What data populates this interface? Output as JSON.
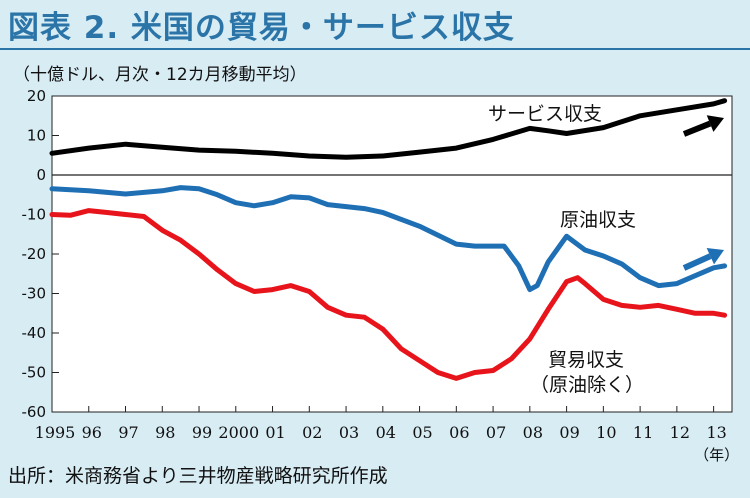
{
  "title": "図表 2. 米国の貿易・サービス収支",
  "unit_note": "（十億ドル、月次・12カ月移動平均）",
  "source": "出所：米商務省より三井物産戦略研究所作成",
  "chart_data": {
    "type": "line",
    "ylim": [
      -60,
      20
    ],
    "yticks": [
      20,
      10,
      0,
      -10,
      -20,
      -30,
      -40,
      -50,
      -60
    ],
    "xlim": [
      1995.0,
      2013.5
    ],
    "xticks": [
      {
        "x": 1995,
        "label": "1995"
      },
      {
        "x": 1996,
        "label": "96"
      },
      {
        "x": 1997,
        "label": "97"
      },
      {
        "x": 1998,
        "label": "98"
      },
      {
        "x": 1999,
        "label": "99"
      },
      {
        "x": 2000,
        "label": "2000"
      },
      {
        "x": 2001,
        "label": "01"
      },
      {
        "x": 2002,
        "label": "02"
      },
      {
        "x": 2003,
        "label": "03"
      },
      {
        "x": 2004,
        "label": "04"
      },
      {
        "x": 2005,
        "label": "05"
      },
      {
        "x": 2006,
        "label": "06"
      },
      {
        "x": 2007,
        "label": "07"
      },
      {
        "x": 2008,
        "label": "08"
      },
      {
        "x": 2009,
        "label": "09"
      },
      {
        "x": 2010,
        "label": "10"
      },
      {
        "x": 2011,
        "label": "11"
      },
      {
        "x": 2012,
        "label": "12"
      },
      {
        "x": 2013,
        "label": "13"
      }
    ],
    "x_unit": "（年）",
    "grid": false,
    "series": [
      {
        "name": "サービス収支",
        "color": "#000000",
        "arrow": true,
        "points": [
          [
            1995.0,
            5.5
          ],
          [
            1996.0,
            6.8
          ],
          [
            1997.0,
            7.8
          ],
          [
            1998.0,
            7.0
          ],
          [
            1999.0,
            6.3
          ],
          [
            2000.0,
            6.0
          ],
          [
            2001.0,
            5.5
          ],
          [
            2002.0,
            4.8
          ],
          [
            2003.0,
            4.5
          ],
          [
            2004.0,
            4.8
          ],
          [
            2005.0,
            5.8
          ],
          [
            2006.0,
            6.8
          ],
          [
            2007.0,
            9.0
          ],
          [
            2008.0,
            11.8
          ],
          [
            2008.5,
            11.2
          ],
          [
            2009.0,
            10.5
          ],
          [
            2010.0,
            12.0
          ],
          [
            2011.0,
            15.0
          ],
          [
            2012.0,
            16.5
          ],
          [
            2013.0,
            18.0
          ],
          [
            2013.3,
            18.8
          ]
        ]
      },
      {
        "name": "原油収支",
        "color": "#1f6fb5",
        "arrow": true,
        "points": [
          [
            1995.0,
            -3.5
          ],
          [
            1996.0,
            -4.0
          ],
          [
            1997.0,
            -4.8
          ],
          [
            1998.0,
            -4.0
          ],
          [
            1998.5,
            -3.2
          ],
          [
            1999.0,
            -3.5
          ],
          [
            1999.5,
            -5.0
          ],
          [
            2000.0,
            -7.0
          ],
          [
            2000.5,
            -7.8
          ],
          [
            2001.0,
            -7.0
          ],
          [
            2001.5,
            -5.5
          ],
          [
            2002.0,
            -5.8
          ],
          [
            2002.5,
            -7.5
          ],
          [
            2003.0,
            -8.0
          ],
          [
            2003.5,
            -8.5
          ],
          [
            2004.0,
            -9.5
          ],
          [
            2005.0,
            -13.0
          ],
          [
            2006.0,
            -17.5
          ],
          [
            2006.5,
            -18.0
          ],
          [
            2007.0,
            -18.0
          ],
          [
            2007.3,
            -18.0
          ],
          [
            2007.7,
            -23.0
          ],
          [
            2008.0,
            -29.0
          ],
          [
            2008.2,
            -28.0
          ],
          [
            2008.5,
            -22.0
          ],
          [
            2009.0,
            -15.5
          ],
          [
            2009.5,
            -19.0
          ],
          [
            2010.0,
            -20.5
          ],
          [
            2010.5,
            -22.5
          ],
          [
            2011.0,
            -26.0
          ],
          [
            2011.5,
            -28.0
          ],
          [
            2012.0,
            -27.5
          ],
          [
            2012.5,
            -25.5
          ],
          [
            2013.0,
            -23.5
          ],
          [
            2013.3,
            -23.0
          ]
        ]
      },
      {
        "name": "貿易収支",
        "subname": "（原油除く）",
        "color": "#e8141c",
        "arrow": false,
        "points": [
          [
            1995.0,
            -10.0
          ],
          [
            1995.5,
            -10.2
          ],
          [
            1996.0,
            -9.0
          ],
          [
            1996.5,
            -9.5
          ],
          [
            1997.0,
            -10.0
          ],
          [
            1997.5,
            -10.5
          ],
          [
            1998.0,
            -14.0
          ],
          [
            1998.5,
            -16.5
          ],
          [
            1999.0,
            -20.0
          ],
          [
            1999.5,
            -24.0
          ],
          [
            2000.0,
            -27.5
          ],
          [
            2000.5,
            -29.5
          ],
          [
            2001.0,
            -29.0
          ],
          [
            2001.5,
            -28.0
          ],
          [
            2002.0,
            -29.5
          ],
          [
            2002.5,
            -33.5
          ],
          [
            2003.0,
            -35.5
          ],
          [
            2003.5,
            -36.0
          ],
          [
            2004.0,
            -39.0
          ],
          [
            2004.5,
            -44.0
          ],
          [
            2005.0,
            -47.0
          ],
          [
            2005.5,
            -50.0
          ],
          [
            2006.0,
            -51.5
          ],
          [
            2006.5,
            -50.0
          ],
          [
            2007.0,
            -49.5
          ],
          [
            2007.5,
            -46.5
          ],
          [
            2008.0,
            -41.5
          ],
          [
            2008.5,
            -34.0
          ],
          [
            2009.0,
            -27.0
          ],
          [
            2009.3,
            -26.0
          ],
          [
            2009.5,
            -27.5
          ],
          [
            2010.0,
            -31.5
          ],
          [
            2010.5,
            -33.0
          ],
          [
            2011.0,
            -33.5
          ],
          [
            2011.5,
            -33.0
          ],
          [
            2012.0,
            -34.0
          ],
          [
            2012.5,
            -35.0
          ],
          [
            2013.0,
            -35.0
          ],
          [
            2013.3,
            -35.5
          ]
        ]
      }
    ]
  }
}
